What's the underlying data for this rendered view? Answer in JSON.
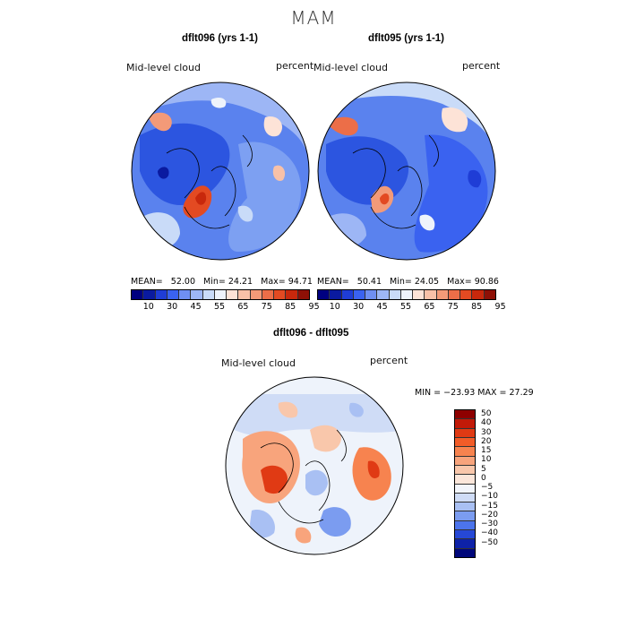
{
  "season": "MAM",
  "panels": [
    {
      "title": "dflt096 (yrs 1-1)",
      "variable": "Mid-level cloud",
      "units": "percent",
      "stats": {
        "mean_label": "MEAN=",
        "mean": "52.00",
        "min_label": "Min=",
        "min": "24.21",
        "max_label": "Max=",
        "max": "94.71"
      }
    },
    {
      "title": "dflt095 (yrs 1-1)",
      "variable": "Mid-level cloud",
      "units": "percent",
      "stats": {
        "mean_label": "MEAN=",
        "mean": "50.41",
        "min_label": "Min=",
        "min": "24.05",
        "max_label": "Max=",
        "max": "90.86"
      }
    }
  ],
  "diff_panel": {
    "title": "dflt096 - dflt095",
    "variable": "Mid-level cloud",
    "units": "percent",
    "minmax": "MIN = −23.93  MAX =   27.29"
  },
  "colorbar_abs": {
    "ticks": [
      "10",
      "30",
      "45",
      "55",
      "65",
      "75",
      "85",
      "95"
    ],
    "colors": [
      "#000080",
      "#0a1aa0",
      "#1f3dd6",
      "#3a62f0",
      "#6f8ff2",
      "#9db6f5",
      "#c9dbf8",
      "#eef3fb",
      "#fde3d7",
      "#f8c1a8",
      "#f39a78",
      "#ec6e48",
      "#e34a22",
      "#c8280c",
      "#8e1006"
    ]
  },
  "colorbar_diff": {
    "labels": [
      "50",
      "40",
      "30",
      "20",
      "15",
      "10",
      "5",
      "0",
      "−5",
      "−10",
      "−15",
      "−20",
      "−30",
      "−40",
      "−50"
    ],
    "colors": [
      "#8e0000",
      "#c21a08",
      "#e03a14",
      "#f25c28",
      "#f7834f",
      "#f8a47c",
      "#f9c7ab",
      "#fbe6da",
      "#f2f5fb",
      "#cfdcf6",
      "#a9c0f3",
      "#7b9cf0",
      "#4c74ec",
      "#2648d6",
      "#0e22a8",
      "#00077a"
    ]
  }
}
